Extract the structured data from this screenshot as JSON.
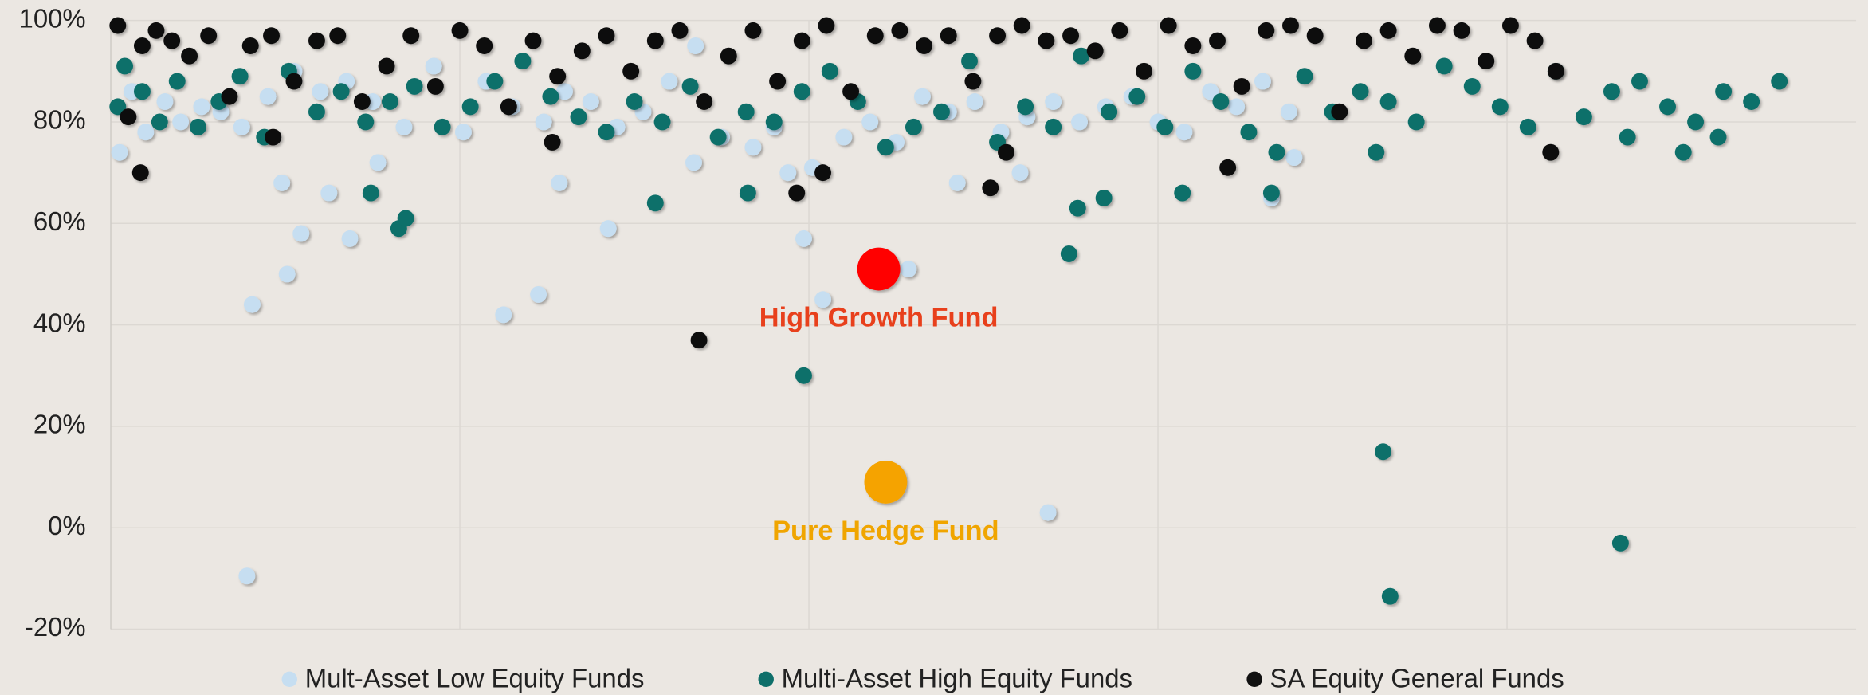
{
  "chart_data": {
    "type": "scatter",
    "xlim": [
      0,
      100
    ],
    "xticks": [
      20,
      40,
      60,
      80
    ],
    "ylim": [
      -20,
      100
    ],
    "yticks": [
      {
        "value": -20,
        "label": "-20%"
      },
      {
        "value": 0,
        "label": "0%"
      },
      {
        "value": 20,
        "label": "20%"
      },
      {
        "value": 40,
        "label": "40%"
      },
      {
        "value": 60,
        "label": "60%"
      },
      {
        "value": 80,
        "label": "80%"
      },
      {
        "value": 100,
        "label": "100%"
      }
    ],
    "grid": true,
    "legend": "bottom",
    "series": [
      {
        "name": "Mult-Asset Low Equity Funds",
        "color": "#c6def1",
        "x": [
          0.5,
          1.2,
          2.0,
          3.1,
          4.0,
          5.2,
          6.3,
          7.5,
          9.0,
          10.5,
          12.0,
          13.5,
          15.0,
          16.8,
          18.5,
          20.2,
          21.5,
          23.0,
          24.8,
          26.0,
          27.5,
          29.0,
          30.5,
          32.0,
          33.5,
          35.0,
          36.8,
          38.0,
          40.2,
          42.0,
          43.5,
          45.0,
          46.5,
          48.0,
          49.5,
          51.0,
          52.5,
          54.0,
          55.5,
          57.0,
          58.5,
          60.0,
          61.5,
          63.0,
          64.5,
          66.0,
          67.5,
          7.8,
          8.1,
          10.1,
          10.9,
          22.5,
          24.5,
          28.5,
          39.7,
          40.8,
          45.7,
          53.7,
          9.8,
          12.5,
          13.7,
          15.3,
          25.7,
          33.4,
          38.8,
          48.5,
          52.1,
          66.5,
          67.8
        ],
        "values": [
          74,
          86,
          78,
          84,
          80,
          83,
          82,
          79,
          85,
          90,
          86,
          88,
          84,
          79,
          91,
          78,
          88,
          83,
          80,
          86,
          84,
          79,
          82,
          88,
          95,
          77,
          75,
          79,
          71,
          77,
          80,
          76,
          85,
          82,
          84,
          78,
          81,
          84,
          80,
          83,
          85,
          80,
          78,
          86,
          83,
          88,
          82,
          -9.5,
          44,
          50,
          58,
          42,
          46,
          59,
          57,
          45,
          51,
          3,
          68,
          66,
          57,
          72,
          68,
          72,
          70,
          68,
          70,
          65,
          73
        ]
      },
      {
        "name": "Multi-Asset High Equity Funds",
        "color": "#0e6f6a",
        "x": [
          0.4,
          0.8,
          1.8,
          2.8,
          3.8,
          5.0,
          6.2,
          7.4,
          8.8,
          10.2,
          11.8,
          13.2,
          14.6,
          16.0,
          17.4,
          19.0,
          20.6,
          22.0,
          23.6,
          25.2,
          26.8,
          28.4,
          30.0,
          31.6,
          33.2,
          34.8,
          36.4,
          38.0,
          39.6,
          41.2,
          42.8,
          44.4,
          46.0,
          47.6,
          49.2,
          50.8,
          52.4,
          54.0,
          55.6,
          57.2,
          58.8,
          60.4,
          62.0,
          63.6,
          65.2,
          66.8,
          68.4,
          70.0,
          71.6,
          73.2,
          74.8,
          76.4,
          78.0,
          79.6,
          81.2,
          82.8,
          84.4,
          86.0,
          87.6,
          89.2,
          90.8,
          92.4,
          94.0,
          95.6,
          39.7,
          54.9,
          55.4,
          56.9,
          72.9,
          73.3,
          86.5,
          16.5,
          16.9,
          14.9,
          31.2,
          36.5,
          61.4,
          66.5,
          72.5,
          90.1,
          92.1,
          86.9
        ],
        "values": [
          83,
          91,
          86,
          80,
          88,
          79,
          84,
          89,
          77,
          90,
          82,
          86,
          80,
          84,
          87,
          79,
          83,
          88,
          92,
          85,
          81,
          78,
          84,
          80,
          87,
          77,
          82,
          80,
          86,
          90,
          84,
          75,
          79,
          82,
          92,
          76,
          83,
          79,
          93,
          82,
          85,
          79,
          90,
          84,
          78,
          74,
          89,
          82,
          86,
          84,
          80,
          91,
          87,
          83,
          79,
          90,
          81,
          86,
          88,
          83,
          80,
          86,
          84,
          88,
          30,
          54,
          63,
          65,
          15,
          -13.5,
          -3,
          59,
          61,
          66,
          64,
          66,
          66,
          66,
          74,
          74,
          77,
          77
        ]
      },
      {
        "name": "SA Equity General Funds",
        "color": "#111111",
        "x": [
          0.4,
          1.0,
          1.8,
          2.6,
          3.5,
          4.5,
          5.6,
          6.8,
          8.0,
          9.2,
          10.5,
          11.8,
          13.0,
          14.4,
          15.8,
          17.2,
          18.6,
          20.0,
          21.4,
          22.8,
          24.2,
          25.6,
          27.0,
          28.4,
          29.8,
          31.2,
          32.6,
          34.0,
          35.4,
          36.8,
          38.2,
          39.6,
          41.0,
          42.4,
          43.8,
          45.2,
          46.6,
          48.0,
          49.4,
          50.8,
          52.2,
          53.6,
          55.0,
          56.4,
          57.8,
          59.2,
          60.6,
          62.0,
          63.4,
          64.8,
          66.2,
          67.6,
          69.0,
          70.4,
          71.8,
          73.2,
          74.6,
          76.0,
          77.4,
          78.8,
          80.2,
          81.6,
          82.8,
          1.7,
          33.7,
          39.3,
          40.8,
          50.4,
          51.3,
          64.0,
          82.5,
          9.3,
          25.3
        ],
        "values": [
          99,
          81,
          95,
          98,
          96,
          93,
          97,
          85,
          95,
          97,
          88,
          96,
          97,
          84,
          91,
          97,
          87,
          98,
          95,
          83,
          96,
          89,
          94,
          97,
          90,
          96,
          98,
          84,
          93,
          98,
          88,
          96,
          99,
          86,
          97,
          98,
          95,
          97,
          88,
          97,
          99,
          96,
          97,
          94,
          98,
          90,
          99,
          95,
          96,
          87,
          98,
          99,
          97,
          82,
          96,
          98,
          93,
          99,
          98,
          92,
          99,
          96,
          90,
          70,
          37,
          66,
          70,
          67,
          74,
          71,
          74,
          77,
          76
        ]
      }
    ],
    "highlights": [
      {
        "label": "High Growth Fund",
        "color": "#ff0000",
        "label_color": "#e8401c",
        "x": 44.0,
        "y": 51
      },
      {
        "label": "Pure Hedge Fund",
        "color": "#f5a300",
        "label_color": "#f0a500",
        "x": 44.4,
        "y": 9
      }
    ]
  }
}
